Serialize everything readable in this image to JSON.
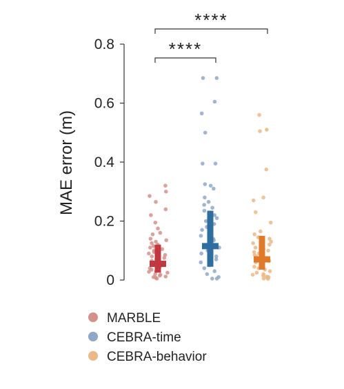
{
  "chart_data": {
    "type": "strip",
    "ylabel": "MAE error (m)",
    "ylim": [
      0,
      0.8
    ],
    "yticks": [
      "0",
      "0.2",
      "0.4",
      "0.6",
      "0.8"
    ],
    "ytick_values": [
      0,
      0.2,
      0.4,
      0.6,
      0.8
    ],
    "groups": [
      {
        "name": "MARBLE",
        "point_color": "#d4918c",
        "summary_color": "#c0393f",
        "median": 0.055,
        "q1": 0.025,
        "q3": 0.12,
        "points": [
          0.32,
          0.3,
          0.285,
          0.265,
          0.24,
          0.22,
          0.195,
          0.175,
          0.16,
          0.155,
          0.14,
          0.135,
          0.13,
          0.125,
          0.12,
          0.115,
          0.11,
          0.105,
          0.1,
          0.095,
          0.09,
          0.085,
          0.08,
          0.075,
          0.07,
          0.065,
          0.06,
          0.055,
          0.05,
          0.045,
          0.04,
          0.035,
          0.03,
          0.028,
          0.025,
          0.02,
          0.018,
          0.015,
          0.012,
          0.01,
          0.008,
          0.005
        ]
      },
      {
        "name": "CEBRA-time",
        "point_color": "#8fa8c8",
        "summary_color": "#2f6fa0",
        "median": 0.115,
        "q1": 0.045,
        "q3": 0.235,
        "points": [
          0.685,
          0.685,
          0.605,
          0.565,
          0.5,
          0.395,
          0.395,
          0.325,
          0.32,
          0.31,
          0.28,
          0.265,
          0.255,
          0.245,
          0.235,
          0.22,
          0.21,
          0.2,
          0.19,
          0.18,
          0.17,
          0.165,
          0.155,
          0.15,
          0.14,
          0.135,
          0.13,
          0.125,
          0.12,
          0.11,
          0.1,
          0.09,
          0.08,
          0.07,
          0.06,
          0.05,
          0.04,
          0.03,
          0.02,
          0.01,
          0.005,
          0.005
        ]
      },
      {
        "name": "CEBRA-behavior",
        "point_color": "#ebb988",
        "summary_color": "#e07a2a",
        "median": 0.07,
        "q1": 0.035,
        "q3": 0.15,
        "points": [
          0.56,
          0.51,
          0.505,
          0.375,
          0.28,
          0.27,
          0.23,
          0.195,
          0.165,
          0.155,
          0.145,
          0.14,
          0.13,
          0.125,
          0.12,
          0.11,
          0.105,
          0.1,
          0.095,
          0.09,
          0.085,
          0.08,
          0.075,
          0.07,
          0.065,
          0.06,
          0.055,
          0.05,
          0.045,
          0.04,
          0.035,
          0.03,
          0.025,
          0.02,
          0.018,
          0.015,
          0.012,
          0.01,
          0.008,
          0.005,
          0.004
        ]
      }
    ],
    "significance": [
      {
        "from": 0,
        "to": 1,
        "label": "****"
      },
      {
        "from": 0,
        "to": 2,
        "label": "****"
      }
    ],
    "legend": {
      "placement": "bottom-left",
      "entries": [
        "MARBLE",
        "CEBRA-time",
        "CEBRA-behavior"
      ]
    }
  }
}
